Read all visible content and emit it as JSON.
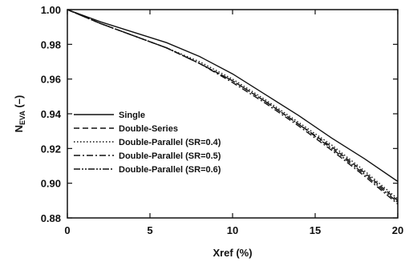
{
  "chart_data": {
    "type": "line",
    "xlabel": "Xref (%)",
    "ylabel": "N",
    "ylabel_sub": "EVA",
    "ylabel_suffix": " (–)",
    "xlim": [
      0,
      20
    ],
    "ylim": [
      0.88,
      1.0
    ],
    "xticks": [
      0,
      5,
      10,
      15,
      20
    ],
    "yticks": [
      0.88,
      0.9,
      0.92,
      0.94,
      0.96,
      0.98,
      1.0
    ],
    "xtick_labels": [
      "0",
      "5",
      "10",
      "15",
      "20"
    ],
    "ytick_labels": [
      "0.88",
      "0.90",
      "0.92",
      "0.94",
      "0.96",
      "0.98",
      "1.00"
    ],
    "grid": false,
    "legend_position": "center-left",
    "series": [
      {
        "name": "Single",
        "style": "solid",
        "x": [
          0,
          2,
          4,
          6,
          8,
          10,
          12,
          14,
          16,
          18,
          20
        ],
        "y": [
          1.0,
          0.993,
          0.987,
          0.981,
          0.973,
          0.963,
          0.951,
          0.939,
          0.926,
          0.914,
          0.901
        ]
      },
      {
        "name": "Double-Series",
        "style": "dashed",
        "x": [
          0,
          2,
          4,
          6,
          8,
          10,
          12,
          14,
          16,
          18,
          20
        ],
        "y": [
          1.0,
          0.992,
          0.985,
          0.978,
          0.969,
          0.959,
          0.947,
          0.934,
          0.921,
          0.906,
          0.89
        ]
      },
      {
        "name": "Double-Parallel (SR=0.4)",
        "style": "dotted",
        "x": [
          0,
          2,
          4,
          6,
          8,
          10,
          12,
          14,
          16,
          18,
          20
        ],
        "y": [
          1.0,
          0.992,
          0.985,
          0.978,
          0.97,
          0.96,
          0.948,
          0.935,
          0.922,
          0.907,
          0.891
        ]
      },
      {
        "name": "Double-Parallel (SR=0.5)",
        "style": "dashdot",
        "x": [
          0,
          2,
          4,
          6,
          8,
          10,
          12,
          14,
          16,
          18,
          20
        ],
        "y": [
          1.0,
          0.992,
          0.985,
          0.978,
          0.969,
          0.958,
          0.946,
          0.933,
          0.919,
          0.904,
          0.888
        ]
      },
      {
        "name": "Double-Parallel (SR=0.6)",
        "style": "dashdotdot",
        "x": [
          0,
          2,
          4,
          6,
          8,
          10,
          12,
          14,
          16,
          18,
          20
        ],
        "y": [
          1.0,
          0.992,
          0.985,
          0.978,
          0.969,
          0.959,
          0.947,
          0.934,
          0.92,
          0.905,
          0.889
        ]
      }
    ]
  }
}
